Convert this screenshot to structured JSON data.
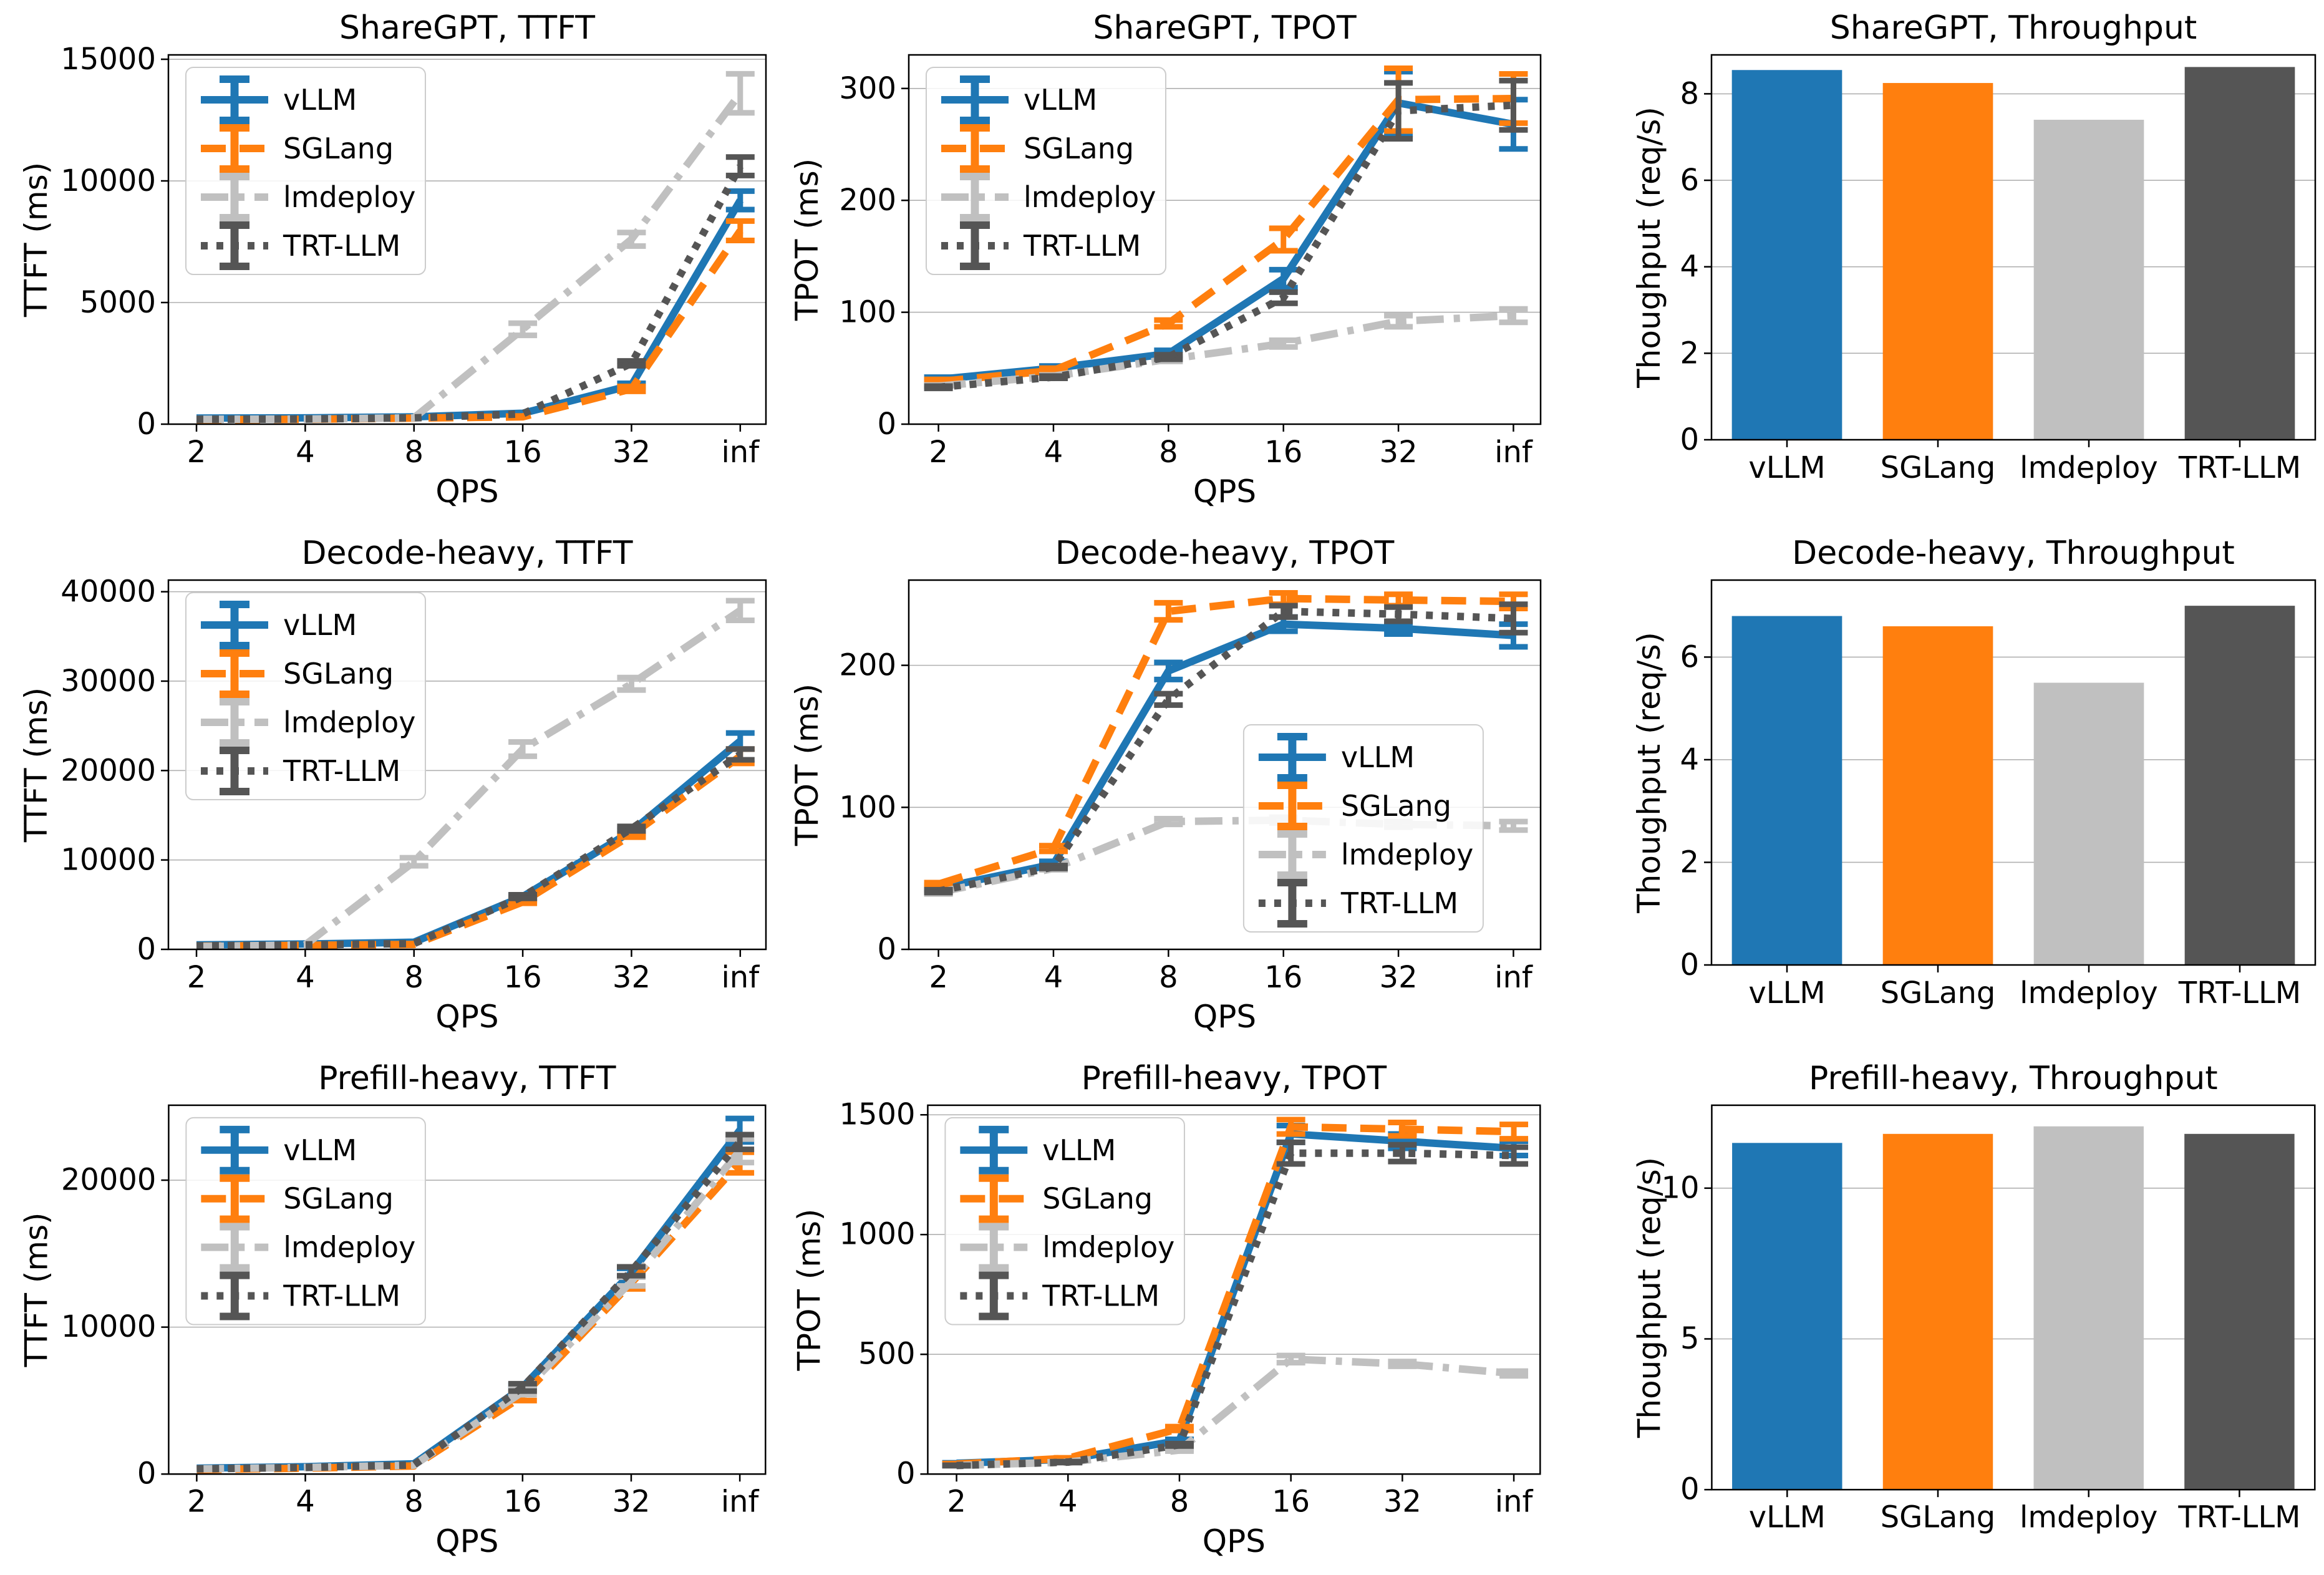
{
  "figure": {
    "background": "#ffffff",
    "text_color": "#000000",
    "grid_color": "#b0b0b0",
    "spine_color": "#000000",
    "palette": {
      "vllm": "#1f77b4",
      "sglang": "#ff7f0e",
      "lmdeploy": "#c0c0c0",
      "trtllm": "#555555"
    }
  },
  "chart_data": [
    {
      "type": "line",
      "title": "ShareGPT, TTFT",
      "ylabel": "TTFT (ms)",
      "xlabel": "QPS",
      "x_tick_labels": [
        "2",
        "4",
        "8",
        "16",
        "32",
        "inf"
      ],
      "ylim": [
        0,
        15180
      ],
      "yticks": [
        0,
        5000,
        10000,
        15000
      ],
      "legend": {
        "position": "upper-left",
        "labels": [
          "vLLM",
          "SGLang",
          "lmdeploy",
          "TRT-LLM"
        ]
      },
      "series": [
        {
          "name": "vLLM",
          "color_key": "vllm",
          "dash": "solid",
          "values": [
            250,
            260,
            300,
            450,
            1600,
            9200
          ],
          "errors": [
            0,
            0,
            0,
            0,
            80,
            380
          ]
        },
        {
          "name": "SGLang",
          "color_key": "sglang",
          "dash": "dashed",
          "values": [
            180,
            200,
            250,
            300,
            1450,
            7950
          ],
          "errors": [
            0,
            0,
            0,
            0,
            100,
            400
          ]
        },
        {
          "name": "lmdeploy",
          "color_key": "lmdeploy",
          "dash": "dashdot",
          "values": [
            200,
            210,
            260,
            3900,
            7600,
            13600
          ],
          "errors": [
            0,
            0,
            0,
            250,
            280,
            800
          ]
        },
        {
          "name": "TRT-LLM",
          "color_key": "trtllm",
          "dash": "dotted",
          "values": [
            200,
            210,
            260,
            420,
            2500,
            10600
          ],
          "errors": [
            0,
            0,
            0,
            0,
            100,
            380
          ]
        }
      ]
    },
    {
      "type": "line",
      "title": "ShareGPT, TPOT",
      "ylabel": "TPOT (ms)",
      "xlabel": "QPS",
      "x_tick_labels": [
        "2",
        "4",
        "8",
        "16",
        "32",
        "inf"
      ],
      "ylim": [
        0,
        330
      ],
      "yticks": [
        0,
        100,
        200,
        300
      ],
      "legend": {
        "position": "upper-left",
        "labels": [
          "vLLM",
          "SGLang",
          "lmdeploy",
          "TRT-LLM"
        ]
      },
      "series": [
        {
          "name": "vLLM",
          "color_key": "vllm",
          "dash": "solid",
          "values": [
            40,
            50,
            63,
            130,
            287,
            268
          ],
          "errors": [
            2,
            2,
            3,
            8,
            28,
            22
          ]
        },
        {
          "name": "SGLang",
          "color_key": "sglang",
          "dash": "dashed",
          "values": [
            38,
            48,
            90,
            165,
            290,
            291
          ],
          "errors": [
            2,
            2,
            3,
            10,
            28,
            22
          ]
        },
        {
          "name": "lmdeploy",
          "color_key": "lmdeploy",
          "dash": "dashdot",
          "values": [
            34,
            43,
            58,
            72,
            92,
            97
          ],
          "errors": [
            1,
            1,
            2,
            3,
            5,
            6
          ]
        },
        {
          "name": "TRT-LLM",
          "color_key": "trtllm",
          "dash": "dotted",
          "values": [
            33,
            42,
            60,
            113,
            280,
            285
          ],
          "errors": [
            1,
            1,
            2,
            5,
            25,
            22
          ]
        }
      ]
    },
    {
      "type": "bar",
      "title": "ShareGPT, Throughput",
      "ylabel": "Thoughput (req/s)",
      "categories": [
        "vLLM",
        "SGLang",
        "lmdeploy",
        "TRT-LLM"
      ],
      "color_keys": [
        "vllm",
        "sglang",
        "lmdeploy",
        "trtllm"
      ],
      "values": [
        8.55,
        8.25,
        7.4,
        8.62
      ],
      "ylim": [
        0,
        8.9
      ],
      "yticks": [
        0,
        2,
        4,
        6,
        8
      ]
    },
    {
      "type": "line",
      "title": "Decode-heavy, TTFT",
      "ylabel": "TTFT (ms)",
      "xlabel": "QPS",
      "x_tick_labels": [
        "2",
        "4",
        "8",
        "16",
        "32",
        "inf"
      ],
      "ylim": [
        0,
        41300
      ],
      "yticks": [
        0,
        10000,
        20000,
        30000,
        40000
      ],
      "legend": {
        "position": "upper-left",
        "labels": [
          "vLLM",
          "SGLang",
          "lmdeploy",
          "TRT-LLM"
        ]
      },
      "series": [
        {
          "name": "vLLM",
          "color_key": "vllm",
          "dash": "solid",
          "values": [
            500,
            600,
            800,
            5900,
            13200,
            23300
          ],
          "errors": [
            0,
            0,
            0,
            150,
            250,
            900
          ]
        },
        {
          "name": "SGLang",
          "color_key": "sglang",
          "dash": "dashed",
          "values": [
            350,
            450,
            550,
            5300,
            12800,
            21600
          ],
          "errors": [
            0,
            0,
            0,
            150,
            250,
            800
          ]
        },
        {
          "name": "lmdeploy",
          "color_key": "lmdeploy",
          "dash": "dashdot",
          "values": [
            300,
            500,
            9800,
            22400,
            29700,
            37900
          ],
          "errors": [
            0,
            0,
            450,
            800,
            700,
            1100
          ]
        },
        {
          "name": "TRT-LLM",
          "color_key": "trtllm",
          "dash": "dotted",
          "values": [
            400,
            500,
            650,
            5900,
            13500,
            21800
          ],
          "errors": [
            0,
            0,
            0,
            200,
            250,
            600
          ]
        }
      ]
    },
    {
      "type": "line",
      "title": "Decode-heavy, TPOT",
      "ylabel": "TPOT (ms)",
      "xlabel": "QPS",
      "x_tick_labels": [
        "2",
        "4",
        "8",
        "16",
        "32",
        "inf"
      ],
      "ylim": [
        0,
        260
      ],
      "yticks": [
        0,
        100,
        200
      ],
      "legend": {
        "position": "center-right",
        "labels": [
          "vLLM",
          "SGLang",
          "lmdeploy",
          "TRT-LLM"
        ]
      },
      "series": [
        {
          "name": "vLLM",
          "color_key": "vllm",
          "dash": "solid",
          "values": [
            43,
            60,
            196,
            229,
            226,
            221
          ],
          "errors": [
            1,
            2,
            6,
            5,
            4,
            8
          ]
        },
        {
          "name": "SGLang",
          "color_key": "sglang",
          "dash": "dashed",
          "values": [
            46,
            71,
            238,
            247,
            246,
            245
          ],
          "errors": [
            1,
            2,
            6,
            4,
            4,
            5
          ]
        },
        {
          "name": "lmdeploy",
          "color_key": "lmdeploy",
          "dash": "dashdot",
          "values": [
            40,
            57,
            90,
            91,
            88,
            87
          ],
          "errors": [
            1,
            1,
            2,
            2,
            2,
            3
          ]
        },
        {
          "name": "TRT-LLM",
          "color_key": "trtllm",
          "dash": "dotted",
          "values": [
            41,
            58,
            176,
            238,
            236,
            233
          ],
          "errors": [
            1,
            1,
            4,
            4,
            5,
            10
          ]
        }
      ]
    },
    {
      "type": "bar",
      "title": "Decode-heavy, Throughput",
      "ylabel": "Thoughput (req/s)",
      "categories": [
        "vLLM",
        "SGLang",
        "lmdeploy",
        "TRT-LLM"
      ],
      "color_keys": [
        "vllm",
        "sglang",
        "lmdeploy",
        "trtllm"
      ],
      "values": [
        6.8,
        6.6,
        5.5,
        7.0
      ],
      "ylim": [
        0,
        7.5
      ],
      "yticks": [
        0,
        2,
        4,
        6
      ]
    },
    {
      "type": "line",
      "title": "Prefill-heavy, TTFT",
      "ylabel": "TTFT (ms)",
      "xlabel": "QPS",
      "x_tick_labels": [
        "2",
        "4",
        "8",
        "16",
        "32",
        "inf"
      ],
      "ylim": [
        0,
        25100
      ],
      "yticks": [
        0,
        10000,
        20000
      ],
      "legend": {
        "position": "upper-left",
        "labels": [
          "vLLM",
          "SGLang",
          "lmdeploy",
          "TRT-LLM"
        ]
      },
      "series": [
        {
          "name": "vLLM",
          "color_key": "vllm",
          "dash": "solid",
          "values": [
            400,
            500,
            700,
            5900,
            13700,
            23400
          ],
          "errors": [
            0,
            0,
            0,
            150,
            300,
            800
          ]
        },
        {
          "name": "SGLang",
          "color_key": "sglang",
          "dash": "dashed",
          "values": [
            300,
            400,
            550,
            5300,
            13000,
            21200
          ],
          "errors": [
            0,
            0,
            0,
            300,
            400,
            700
          ]
        },
        {
          "name": "lmdeploy",
          "color_key": "lmdeploy",
          "dash": "dashdot",
          "values": [
            350,
            450,
            600,
            5600,
            13100,
            22000
          ],
          "errors": [
            0,
            0,
            0,
            200,
            300,
            800
          ]
        },
        {
          "name": "TRT-LLM",
          "color_key": "trtllm",
          "dash": "dotted",
          "values": [
            350,
            450,
            620,
            5900,
            13800,
            22600
          ],
          "errors": [
            0,
            0,
            0,
            250,
            300,
            500
          ]
        }
      ]
    },
    {
      "type": "line",
      "title": "Prefill-heavy, TPOT",
      "ylabel": "TPOT (ms)",
      "xlabel": "QPS",
      "x_tick_labels": [
        "2",
        "4",
        "8",
        "16",
        "32",
        "inf"
      ],
      "ylim": [
        0,
        1540
      ],
      "yticks": [
        0,
        500,
        1000,
        1500
      ],
      "legend": {
        "position": "upper-left",
        "labels": [
          "vLLM",
          "SGLang",
          "lmdeploy",
          "TRT-LLM"
        ]
      },
      "series": [
        {
          "name": "vLLM",
          "color_key": "vllm",
          "dash": "solid",
          "values": [
            45,
            62,
            140,
            1420,
            1390,
            1360
          ],
          "errors": [
            2,
            2,
            5,
            35,
            30,
            30
          ]
        },
        {
          "name": "SGLang",
          "color_key": "sglang",
          "dash": "dashed",
          "values": [
            42,
            66,
            190,
            1450,
            1440,
            1430
          ],
          "errors": [
            2,
            2,
            8,
            30,
            28,
            30
          ]
        },
        {
          "name": "lmdeploy",
          "color_key": "lmdeploy",
          "dash": "dashdot",
          "values": [
            36,
            50,
            100,
            480,
            460,
            420
          ],
          "errors": [
            1,
            2,
            4,
            15,
            10,
            10
          ]
        },
        {
          "name": "TRT-LLM",
          "color_key": "trtllm",
          "dash": "dotted",
          "values": [
            36,
            50,
            122,
            1340,
            1340,
            1330
          ],
          "errors": [
            1,
            2,
            5,
            45,
            35,
            35
          ]
        }
      ]
    },
    {
      "type": "bar",
      "title": "Prefill-heavy, Throughput",
      "ylabel": "Thoughput (req/s)",
      "categories": [
        "vLLM",
        "SGLang",
        "lmdeploy",
        "TRT-LLM"
      ],
      "color_keys": [
        "vllm",
        "sglang",
        "lmdeploy",
        "trtllm"
      ],
      "values": [
        11.5,
        11.8,
        12.05,
        11.8
      ],
      "ylim": [
        0,
        12.75
      ],
      "yticks": [
        0,
        5,
        10
      ]
    }
  ]
}
